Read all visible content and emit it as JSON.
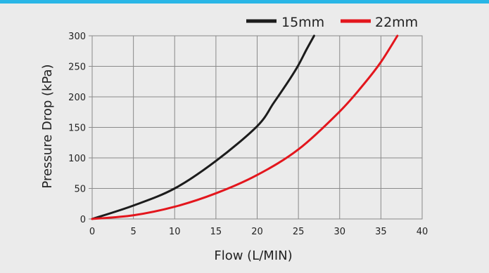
{
  "colors": {
    "top_bar": "#29b6e6",
    "background": "#ebebeb",
    "grid": "#8a8a8a"
  },
  "chart_data": {
    "type": "line",
    "xlabel": "Flow (L/MIN)",
    "ylabel": "Pressure Drop (kPa)",
    "xlim": [
      0,
      40
    ],
    "ylim": [
      0,
      300
    ],
    "x_ticks": [
      "0",
      "5",
      "10",
      "15",
      "20",
      "25",
      "30",
      "35",
      "40"
    ],
    "y_ticks": [
      "0",
      "50",
      "100",
      "150",
      "200",
      "250",
      "300"
    ],
    "grid": true,
    "legend_position": "top-right",
    "series": [
      {
        "name": "15mm",
        "color": "#1c1c1c",
        "x": [
          0,
          5,
          10,
          15,
          20,
          22,
          24,
          25,
          26,
          26.9
        ],
        "y": [
          0,
          22,
          50,
          95,
          152,
          190,
          230,
          252,
          278,
          300
        ]
      },
      {
        "name": "22mm",
        "color": "#e3161d",
        "x": [
          0,
          5,
          10,
          15,
          20,
          25,
          30,
          33,
          35,
          37
        ],
        "y": [
          0,
          6,
          20,
          42,
          72,
          114,
          176,
          222,
          257,
          300
        ]
      }
    ]
  }
}
